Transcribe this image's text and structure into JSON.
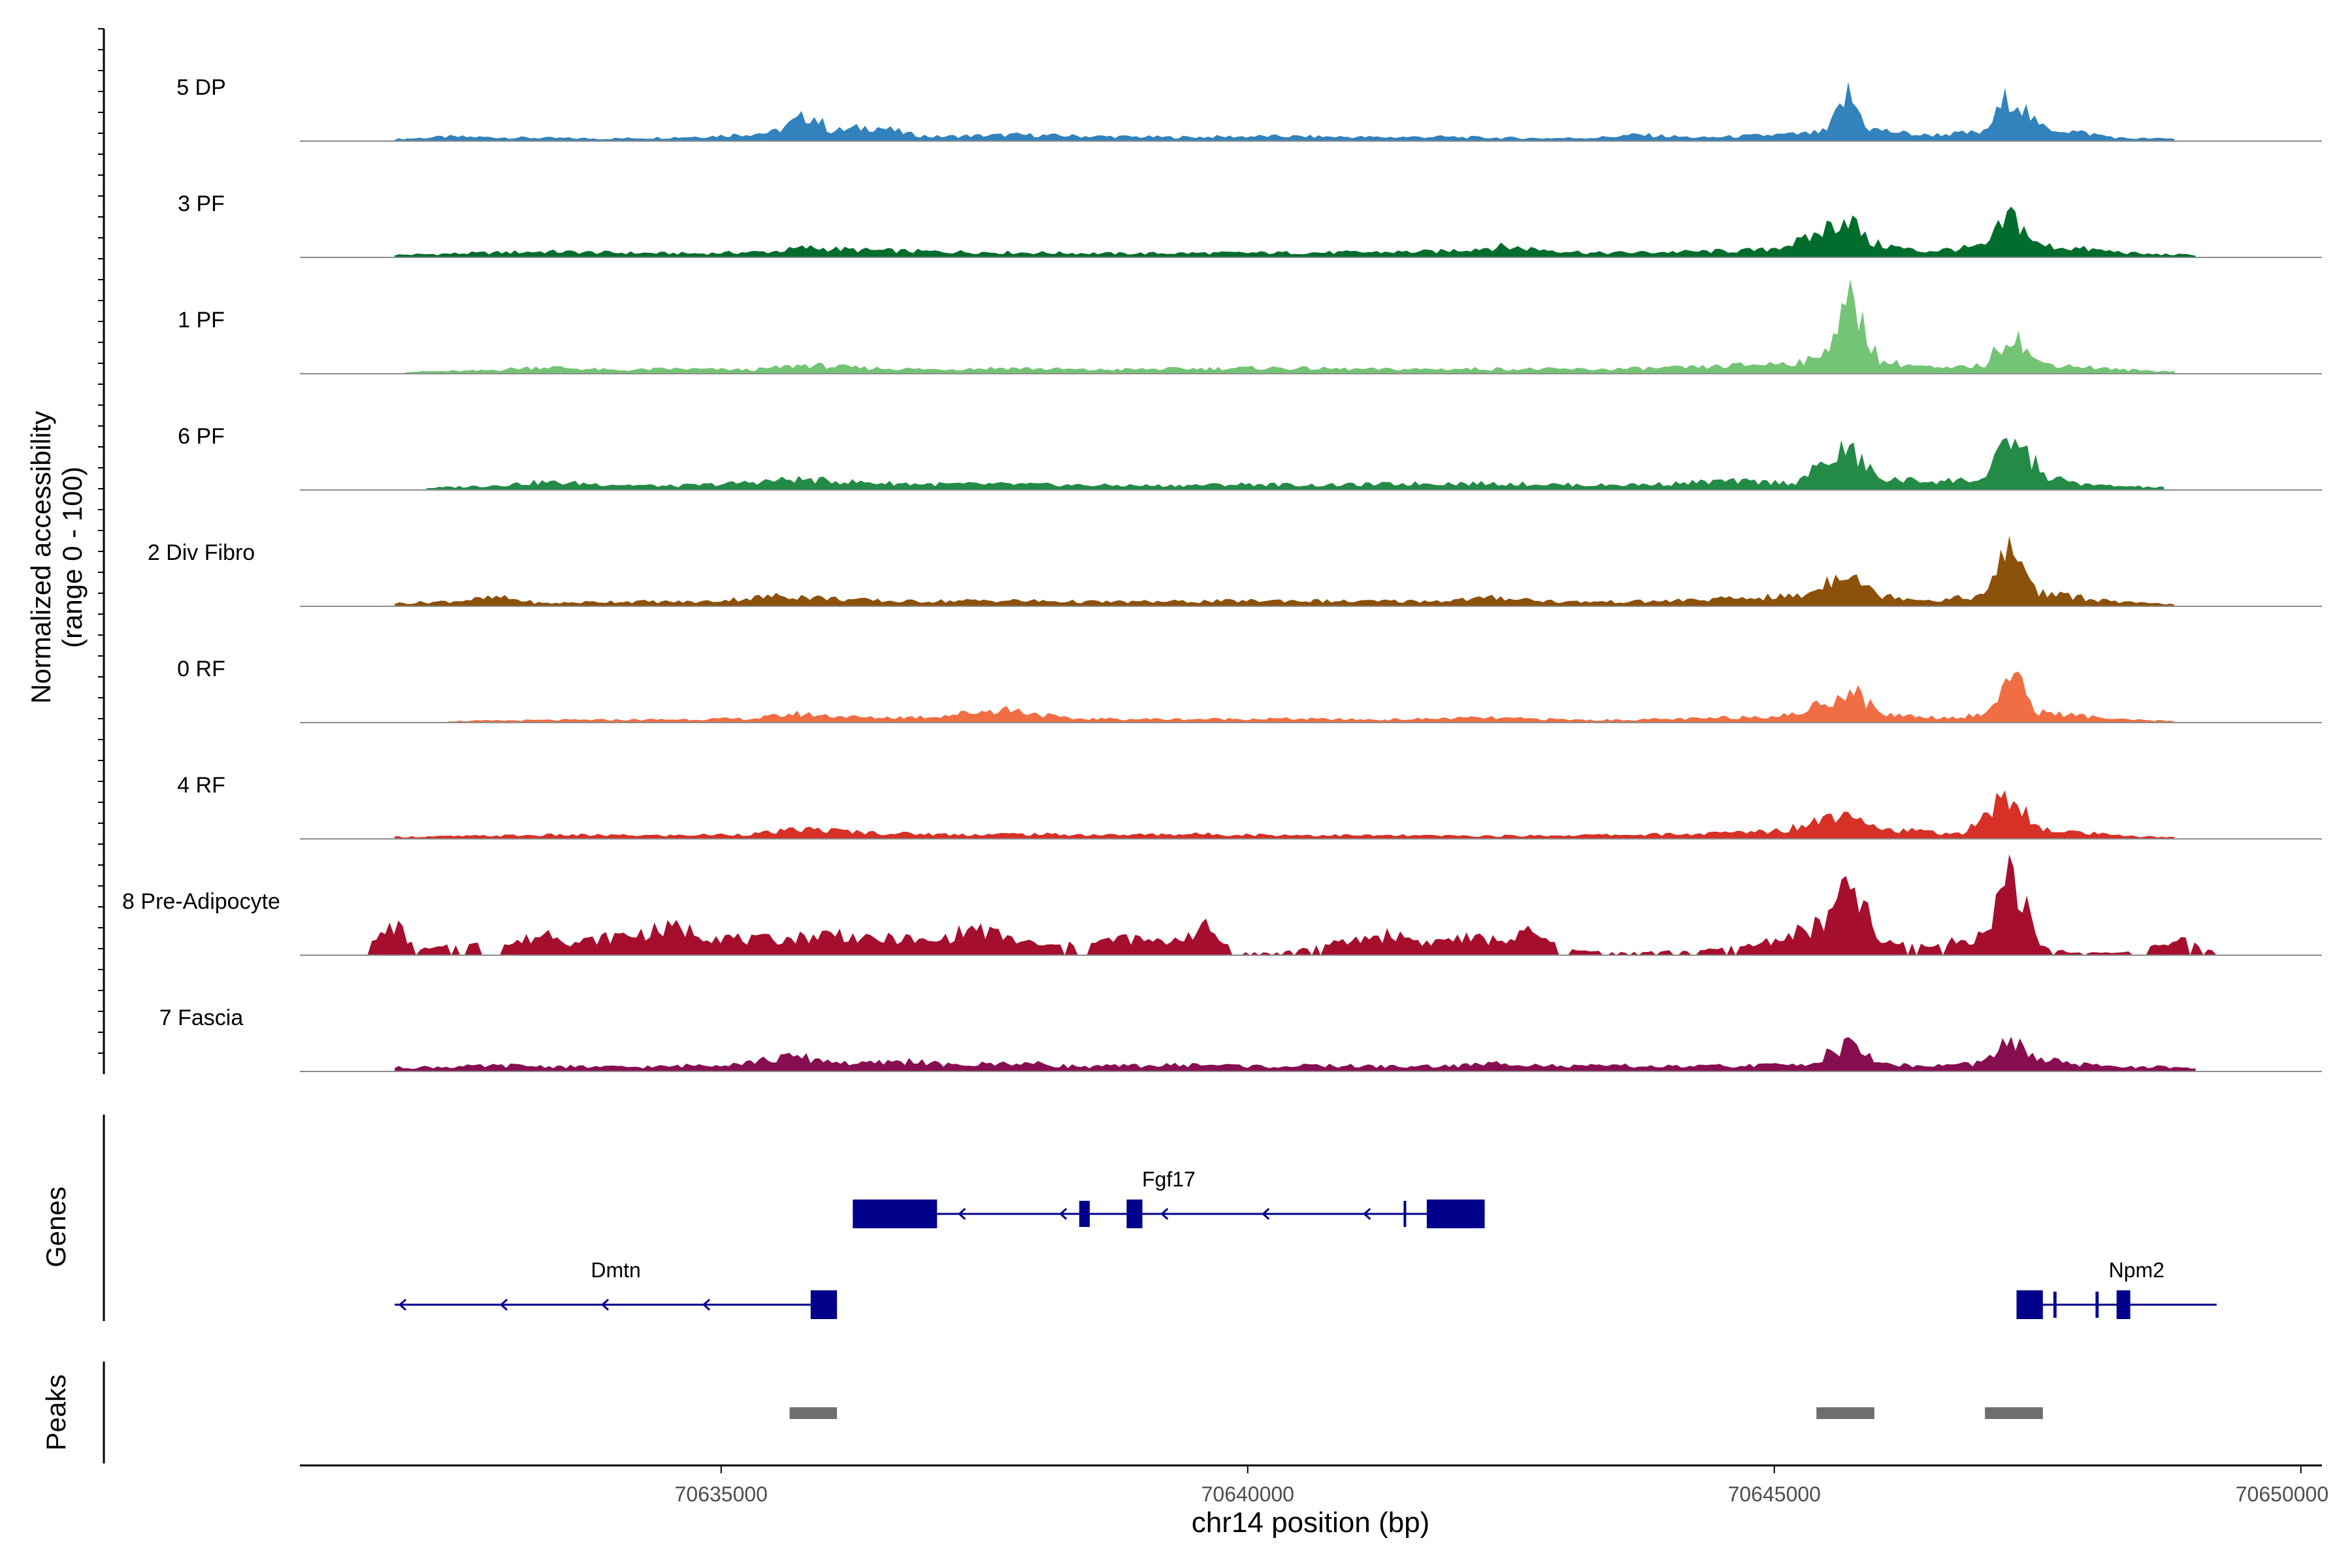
{
  "chart_data": {
    "type": "area",
    "title": "",
    "xlabel": "chr14 position (bp)",
    "xlim": [
      70631000,
      70650200
    ],
    "x_ticks": [
      "70635000",
      "70640000",
      "70645000",
      "70650000"
    ],
    "x_tick_values": [
      70635000,
      70640000,
      70645000,
      70650000
    ],
    "coverage_ylabel_line1": "Normalized accessibility",
    "coverage_ylabel_line2": "(range 0 - 100)",
    "genes_label": "Genes",
    "peaks_label": "Peaks",
    "tracks": [
      {
        "name": "5 DP",
        "color": "#3182bd",
        "profile": [
          [
            70631900,
            4
          ],
          [
            70632400,
            9
          ],
          [
            70633900,
            5
          ],
          [
            70634400,
            7
          ],
          [
            70634900,
            10
          ],
          [
            70635500,
            18
          ],
          [
            70635850,
            55
          ],
          [
            70636050,
            20
          ],
          [
            70636450,
            30
          ],
          [
            70636800,
            14
          ],
          [
            70637000,
            9
          ],
          [
            70637800,
            13
          ],
          [
            70638500,
            10
          ],
          [
            70639300,
            8
          ],
          [
            70640200,
            10
          ],
          [
            70641300,
            8
          ],
          [
            70641800,
            9
          ],
          [
            70642300,
            7
          ],
          [
            70642800,
            6
          ],
          [
            70643300,
            7
          ],
          [
            70643700,
            13
          ],
          [
            70644300,
            7
          ],
          [
            70645300,
            15
          ],
          [
            70645500,
            20
          ],
          [
            70645700,
            95
          ],
          [
            70645900,
            25
          ],
          [
            70646400,
            12
          ],
          [
            70647000,
            18
          ],
          [
            70647250,
            100
          ],
          [
            70647500,
            30
          ],
          [
            70648300,
            6
          ],
          [
            70648800,
            5
          ]
        ]
      },
      {
        "name": "3 PF",
        "color": "#006d2c",
        "profile": [
          [
            70631900,
            5
          ],
          [
            70632500,
            8
          ],
          [
            70633300,
            12
          ],
          [
            70634200,
            9
          ],
          [
            70634800,
            8
          ],
          [
            70635500,
            12
          ],
          [
            70635800,
            20
          ],
          [
            70636300,
            15
          ],
          [
            70637000,
            12
          ],
          [
            70637800,
            10
          ],
          [
            70638800,
            8
          ],
          [
            70639500,
            9
          ],
          [
            70640800,
            10
          ],
          [
            70641800,
            12
          ],
          [
            70642400,
            22
          ],
          [
            70643300,
            9
          ],
          [
            70644300,
            12
          ],
          [
            70644900,
            15
          ],
          [
            70645300,
            35
          ],
          [
            70645700,
            85
          ],
          [
            70645900,
            30
          ],
          [
            70646400,
            12
          ],
          [
            70647000,
            22
          ],
          [
            70647250,
            88
          ],
          [
            70647500,
            25
          ],
          [
            70648500,
            7
          ],
          [
            70649000,
            5
          ]
        ]
      },
      {
        "name": "1 PF",
        "color": "#74c476",
        "profile": [
          [
            70632000,
            4
          ],
          [
            70632700,
            6
          ],
          [
            70633300,
            14
          ],
          [
            70634000,
            7
          ],
          [
            70634500,
            10
          ],
          [
            70635300,
            8
          ],
          [
            70635800,
            18
          ],
          [
            70636300,
            12
          ],
          [
            70637000,
            9
          ],
          [
            70637700,
            12
          ],
          [
            70638500,
            8
          ],
          [
            70639300,
            10
          ],
          [
            70640200,
            12
          ],
          [
            70641200,
            9
          ],
          [
            70642200,
            10
          ],
          [
            70643300,
            9
          ],
          [
            70644300,
            13
          ],
          [
            70645100,
            22
          ],
          [
            70645400,
            28
          ],
          [
            70645750,
            150
          ],
          [
            70646000,
            25
          ],
          [
            70646600,
            10
          ],
          [
            70647000,
            18
          ],
          [
            70647250,
            88
          ],
          [
            70647500,
            22
          ],
          [
            70648300,
            8
          ],
          [
            70648800,
            5
          ]
        ]
      },
      {
        "name": "6 PF",
        "color": "#238b45",
        "profile": [
          [
            70632200,
            4
          ],
          [
            70632700,
            8
          ],
          [
            70633300,
            16
          ],
          [
            70633900,
            12
          ],
          [
            70634500,
            8
          ],
          [
            70635000,
            12
          ],
          [
            70635700,
            22
          ],
          [
            70636400,
            15
          ],
          [
            70637000,
            12
          ],
          [
            70637700,
            12
          ],
          [
            70638400,
            10
          ],
          [
            70639200,
            9
          ],
          [
            70640000,
            12
          ],
          [
            70640700,
            10
          ],
          [
            70641300,
            12
          ],
          [
            70641800,
            14
          ],
          [
            70642500,
            13
          ],
          [
            70643300,
            10
          ],
          [
            70643900,
            12
          ],
          [
            70644500,
            18
          ],
          [
            70645200,
            15
          ],
          [
            70645700,
            85
          ],
          [
            70646000,
            22
          ],
          [
            70646500,
            18
          ],
          [
            70647000,
            22
          ],
          [
            70647250,
            108
          ],
          [
            70647600,
            25
          ],
          [
            70648000,
            10
          ],
          [
            70648700,
            5
          ]
        ]
      },
      {
        "name": "2 Div Fibro",
        "color": "#8c510a",
        "profile": [
          [
            70631900,
            6
          ],
          [
            70632400,
            10
          ],
          [
            70632900,
            18
          ],
          [
            70633300,
            6
          ],
          [
            70634000,
            10
          ],
          [
            70634800,
            9
          ],
          [
            70635600,
            22
          ],
          [
            70636200,
            14
          ],
          [
            70636700,
            10
          ],
          [
            70637600,
            12
          ],
          [
            70638600,
            9
          ],
          [
            70639500,
            10
          ],
          [
            70640300,
            12
          ],
          [
            70641000,
            10
          ],
          [
            70641800,
            11
          ],
          [
            70642400,
            18
          ],
          [
            70643000,
            9
          ],
          [
            70643800,
            10
          ],
          [
            70644400,
            14
          ],
          [
            70645100,
            20
          ],
          [
            70645300,
            22
          ],
          [
            70645700,
            80
          ],
          [
            70645950,
            25
          ],
          [
            70646500,
            12
          ],
          [
            70647000,
            22
          ],
          [
            70647250,
            128
          ],
          [
            70647500,
            28
          ],
          [
            70648300,
            8
          ],
          [
            70648800,
            4
          ]
        ]
      },
      {
        "name": "0 RF",
        "color": "#f16d43",
        "profile": [
          [
            70632400,
            3
          ],
          [
            70633300,
            5
          ],
          [
            70634300,
            6
          ],
          [
            70635300,
            8
          ],
          [
            70635700,
            18
          ],
          [
            70636400,
            10
          ],
          [
            70637000,
            12
          ],
          [
            70637700,
            28
          ],
          [
            70638300,
            8
          ],
          [
            70639300,
            7
          ],
          [
            70640300,
            8
          ],
          [
            70641300,
            6
          ],
          [
            70642200,
            10
          ],
          [
            70643300,
            5
          ],
          [
            70644300,
            8
          ],
          [
            70645200,
            16
          ],
          [
            70645750,
            68
          ],
          [
            70646000,
            18
          ],
          [
            70646600,
            10
          ],
          [
            70647000,
            16
          ],
          [
            70647250,
            100
          ],
          [
            70647500,
            22
          ],
          [
            70648300,
            6
          ],
          [
            70648800,
            3
          ]
        ]
      },
      {
        "name": "4 RF",
        "color": "#d73027",
        "profile": [
          [
            70631900,
            4
          ],
          [
            70632700,
            6
          ],
          [
            70633400,
            8
          ],
          [
            70634500,
            7
          ],
          [
            70635300,
            10
          ],
          [
            70635800,
            20
          ],
          [
            70636500,
            12
          ],
          [
            70637200,
            9
          ],
          [
            70637800,
            10
          ],
          [
            70638700,
            8
          ],
          [
            70639500,
            10
          ],
          [
            70640300,
            8
          ],
          [
            70641200,
            7
          ],
          [
            70642300,
            6
          ],
          [
            70643300,
            8
          ],
          [
            70644300,
            10
          ],
          [
            70645100,
            18
          ],
          [
            70645450,
            42
          ],
          [
            70645750,
            62
          ],
          [
            70646000,
            20
          ],
          [
            70646800,
            10
          ],
          [
            70647250,
            95
          ],
          [
            70647500,
            20
          ],
          [
            70648300,
            6
          ],
          [
            70648800,
            3
          ]
        ]
      },
      {
        "name": "8 Pre-Adipocyte",
        "color": "#a50f2d",
        "profile": [
          [
            70631600,
            5
          ],
          [
            70631900,
            65
          ],
          [
            70632100,
            10
          ],
          [
            70632600,
            20
          ],
          [
            70633000,
            22
          ],
          [
            70633400,
            48
          ],
          [
            70633600,
            25
          ],
          [
            70634000,
            38
          ],
          [
            70634600,
            55
          ],
          [
            70634900,
            40
          ],
          [
            70635300,
            30
          ],
          [
            70635700,
            35
          ],
          [
            70636100,
            45
          ],
          [
            70636400,
            30
          ],
          [
            70636700,
            35
          ],
          [
            70637000,
            25
          ],
          [
            70637400,
            55
          ],
          [
            70637800,
            30
          ],
          [
            70638100,
            18
          ],
          [
            70638500,
            22
          ],
          [
            70638800,
            35
          ],
          [
            70639200,
            25
          ],
          [
            70639600,
            55
          ],
          [
            70639900,
            5
          ],
          [
            70640300,
            5
          ],
          [
            70640900,
            25
          ],
          [
            70641200,
            38
          ],
          [
            70641400,
            42
          ],
          [
            70641700,
            25
          ],
          [
            70642000,
            35
          ],
          [
            70642400,
            30
          ],
          [
            70642700,
            45
          ],
          [
            70643000,
            10
          ],
          [
            70643600,
            5
          ],
          [
            70644400,
            10
          ],
          [
            70644800,
            20
          ],
          [
            70645200,
            45
          ],
          [
            70645450,
            60
          ],
          [
            70645750,
            145
          ],
          [
            70646000,
            25
          ],
          [
            70646500,
            18
          ],
          [
            70647000,
            40
          ],
          [
            70647250,
            190
          ],
          [
            70647500,
            20
          ],
          [
            70647800,
            5
          ],
          [
            70648300,
            5
          ],
          [
            70648900,
            28
          ],
          [
            70649200,
            5
          ]
        ]
      },
      {
        "name": "7 Fascia",
        "color": "#880e52",
        "profile": [
          [
            70631900,
            8
          ],
          [
            70632500,
            10
          ],
          [
            70633000,
            12
          ],
          [
            70633500,
            10
          ],
          [
            70634000,
            9
          ],
          [
            70634500,
            10
          ],
          [
            70635200,
            18
          ],
          [
            70635700,
            30
          ],
          [
            70636300,
            15
          ],
          [
            70636800,
            22
          ],
          [
            70637200,
            12
          ],
          [
            70637800,
            18
          ],
          [
            70638400,
            10
          ],
          [
            70639000,
            12
          ],
          [
            70639600,
            14
          ],
          [
            70640200,
            10
          ],
          [
            70640700,
            12
          ],
          [
            70641500,
            10
          ],
          [
            70642000,
            12
          ],
          [
            70642500,
            18
          ],
          [
            70643000,
            10
          ],
          [
            70643500,
            12
          ],
          [
            70644000,
            10
          ],
          [
            70644800,
            12
          ],
          [
            70645300,
            15
          ],
          [
            70645700,
            55
          ],
          [
            70646000,
            18
          ],
          [
            70646400,
            10
          ],
          [
            70647000,
            18
          ],
          [
            70647250,
            65
          ],
          [
            70647500,
            25
          ],
          [
            70648000,
            12
          ],
          [
            70648500,
            10
          ],
          [
            70649000,
            6
          ]
        ]
      }
    ],
    "genes": [
      {
        "name": "Fgf17",
        "row": 1,
        "strand": "-",
        "start": 70636250,
        "end": 70642250,
        "exons": [
          [
            70636250,
            70637050
          ],
          [
            70638400,
            70638500
          ],
          [
            70638850,
            70639000
          ],
          [
            70641480,
            70641500
          ],
          [
            70641700,
            70642250
          ]
        ]
      },
      {
        "name": "Dmtn",
        "row": 2,
        "strand": "-",
        "start": 70631900,
        "end": 70636100,
        "exons": [
          [
            70635850,
            70636100
          ]
        ]
      },
      {
        "name": "Npm2",
        "row": 2,
        "strand": "-",
        "start": 70647300,
        "end": 70649200,
        "exons": [
          [
            70647300,
            70647550
          ],
          [
            70647650,
            70647680
          ],
          [
            70648050,
            70648080
          ],
          [
            70648250,
            70648380
          ]
        ]
      }
    ],
    "peaks": [
      [
        70635650,
        70636100
      ],
      [
        70645400,
        70645950
      ],
      [
        70647000,
        70647550
      ]
    ]
  }
}
